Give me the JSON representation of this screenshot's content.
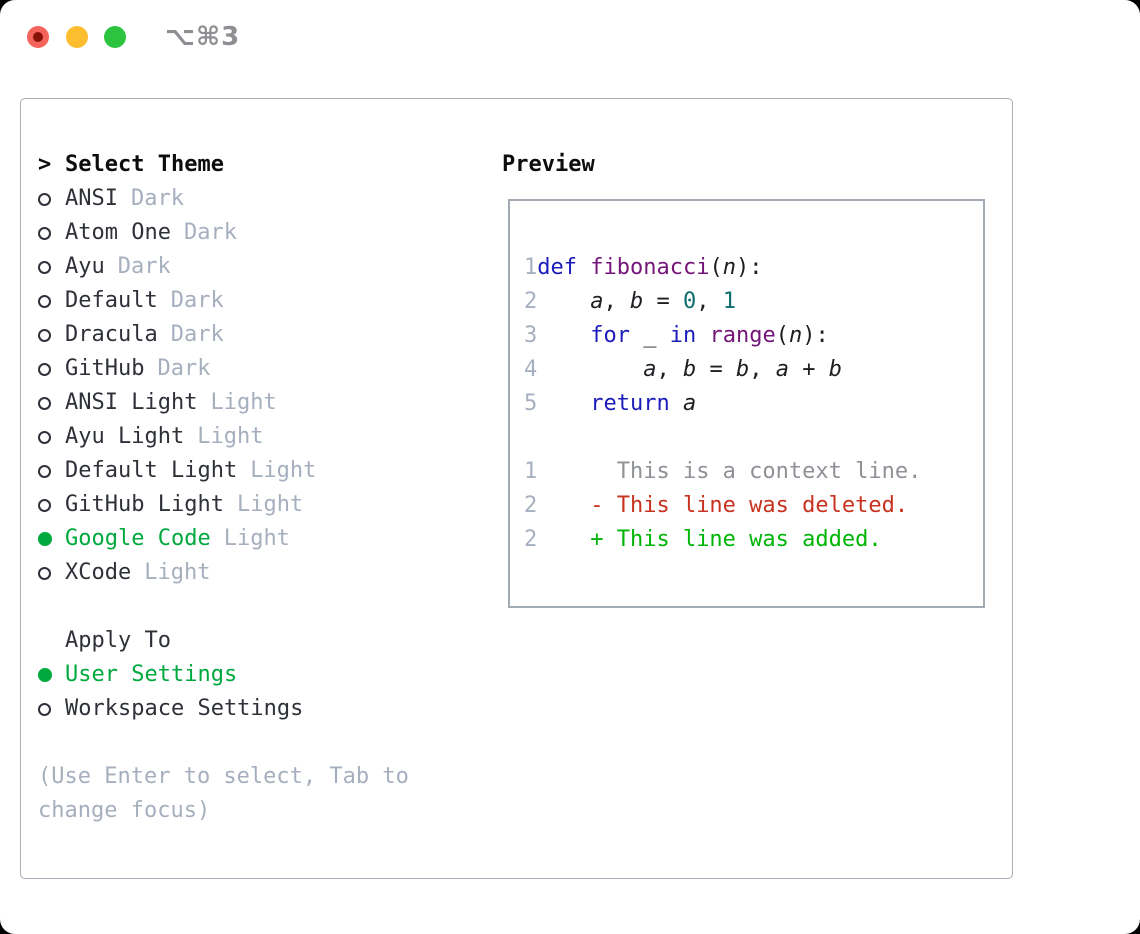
{
  "titlebar": {
    "title": "⌥⌘3"
  },
  "theme_picker": {
    "header": {
      "cursor": ">",
      "label": "Select Theme"
    },
    "themes": [
      {
        "name": "ANSI",
        "variant": "Dark",
        "selected": false
      },
      {
        "name": "Atom One",
        "variant": "Dark",
        "selected": false
      },
      {
        "name": "Ayu",
        "variant": "Dark",
        "selected": false
      },
      {
        "name": "Default",
        "variant": "Dark",
        "selected": false
      },
      {
        "name": "Dracula",
        "variant": "Dark",
        "selected": false
      },
      {
        "name": "GitHub",
        "variant": "Dark",
        "selected": false
      },
      {
        "name": "ANSI Light",
        "variant": "Light",
        "selected": false
      },
      {
        "name": "Ayu Light",
        "variant": "Light",
        "selected": false
      },
      {
        "name": "Default Light",
        "variant": "Light",
        "selected": false
      },
      {
        "name": "GitHub Light",
        "variant": "Light",
        "selected": false
      },
      {
        "name": "Google Code",
        "variant": "Light",
        "selected": true
      },
      {
        "name": "XCode",
        "variant": "Light",
        "selected": false
      }
    ],
    "apply_to": {
      "label": "Apply To",
      "options": [
        {
          "name": "User Settings",
          "selected": true
        },
        {
          "name": "Workspace Settings",
          "selected": false
        }
      ]
    },
    "help_lines": [
      "(Use Enter to select, Tab to",
      "change focus)"
    ]
  },
  "preview": {
    "label": "Preview",
    "code_lines": [
      {
        "num": "1",
        "tokens": [
          [
            "kw",
            "def"
          ],
          [
            "pl",
            " "
          ],
          [
            "fn",
            "fibonacci"
          ],
          [
            "pl",
            "("
          ],
          [
            "va",
            "n"
          ],
          [
            "pl",
            "):"
          ]
        ]
      },
      {
        "num": "2",
        "tokens": [
          [
            "pl",
            "    "
          ],
          [
            "va",
            "a"
          ],
          [
            "pl",
            ", "
          ],
          [
            "va",
            "b"
          ],
          [
            "pl",
            " = "
          ],
          [
            "nu",
            "0"
          ],
          [
            "pl",
            ", "
          ],
          [
            "nu",
            "1"
          ]
        ]
      },
      {
        "num": "3",
        "tokens": [
          [
            "pl",
            "    "
          ],
          [
            "kw",
            "for"
          ],
          [
            "pl",
            " _ "
          ],
          [
            "kw",
            "in"
          ],
          [
            "pl",
            " "
          ],
          [
            "fn",
            "range"
          ],
          [
            "pl",
            "("
          ],
          [
            "va",
            "n"
          ],
          [
            "pl",
            "):"
          ]
        ]
      },
      {
        "num": "4",
        "tokens": [
          [
            "pl",
            "        "
          ],
          [
            "va",
            "a"
          ],
          [
            "pl",
            ", "
          ],
          [
            "va",
            "b"
          ],
          [
            "pl",
            " = "
          ],
          [
            "va",
            "b"
          ],
          [
            "pl",
            ", "
          ],
          [
            "va",
            "a"
          ],
          [
            "pl",
            " + "
          ],
          [
            "va",
            "b"
          ]
        ]
      },
      {
        "num": "5",
        "tokens": [
          [
            "pl",
            "    "
          ],
          [
            "kw",
            "return"
          ],
          [
            "pl",
            " "
          ],
          [
            "va",
            "a"
          ]
        ]
      }
    ],
    "diff_lines": [
      {
        "num": "1",
        "cls": "ctx",
        "text": "      This is a context line."
      },
      {
        "num": "2",
        "cls": "del",
        "text": "    - This line was deleted."
      },
      {
        "num": "2",
        "cls": "add",
        "text": "    + This line was added."
      }
    ]
  },
  "colors": {
    "accent_green": "#00a93e",
    "diff_red": "#c8321f",
    "diff_add_green": "#00b506",
    "context_gray": "#8e9196",
    "keyword_blue": "#1c1cba",
    "type_purple": "#741579",
    "literal_teal": "#0d6e6e",
    "muted_gray": "#a6afbe",
    "line_number_gray": "#a6b0c0",
    "panel_border": "#a7aeb8"
  }
}
